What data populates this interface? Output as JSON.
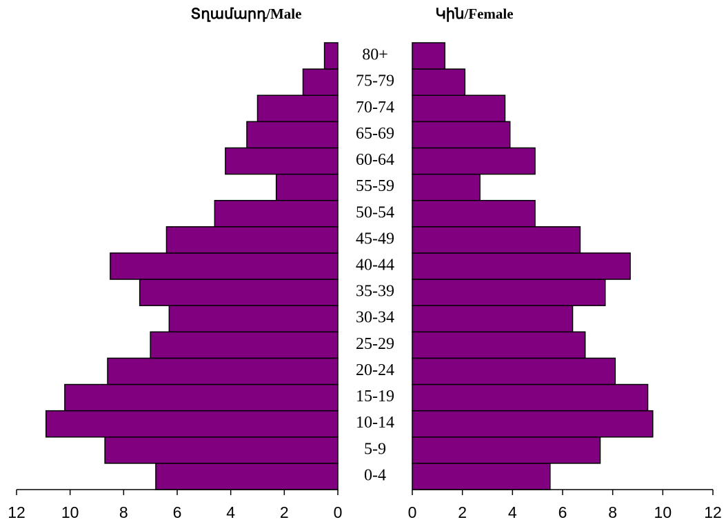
{
  "chart_data": {
    "type": "bar",
    "orientation": "horizontal",
    "categories": [
      "0-4",
      "5-9",
      "10-14",
      "15-19",
      "20-24",
      "25-29",
      "30-34",
      "35-39",
      "40-44",
      "45-49",
      "50-54",
      "55-59",
      "60-64",
      "65-69",
      "70-74",
      "75-79",
      "80+"
    ],
    "series": [
      {
        "name": "Տղամարդ/Male",
        "color": "#800080",
        "values": [
          6.8,
          8.7,
          10.9,
          10.2,
          8.6,
          7.0,
          6.3,
          7.4,
          8.5,
          6.4,
          4.6,
          2.3,
          4.2,
          3.4,
          3.0,
          1.3,
          0.5
        ]
      },
      {
        "name": "Կին/Female",
        "color": "#800080",
        "values": [
          5.5,
          7.5,
          9.6,
          9.4,
          8.1,
          6.9,
          6.4,
          7.7,
          8.7,
          6.7,
          4.9,
          2.7,
          4.9,
          3.9,
          3.7,
          2.1,
          1.3
        ]
      }
    ],
    "xlim": [
      0,
      12
    ],
    "xticks": [
      0,
      2,
      4,
      6,
      8,
      10,
      12
    ]
  }
}
